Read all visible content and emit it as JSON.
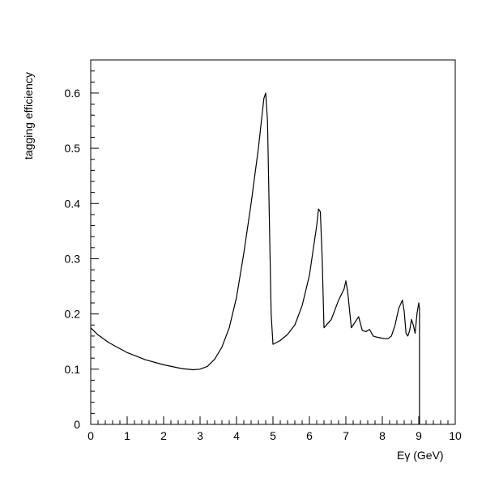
{
  "chart_data": {
    "type": "line",
    "title": "",
    "xlabel": "Eγ (GeV)",
    "ylabel": "tagging efficiency",
    "xlim": [
      0,
      10
    ],
    "ylim": [
      0,
      0.66
    ],
    "x_ticks": [
      0,
      1,
      2,
      3,
      4,
      5,
      6,
      7,
      8,
      9,
      10
    ],
    "x_tick_labels": [
      "0",
      "1",
      "2",
      "3",
      "4",
      "5",
      "6",
      "7",
      "8",
      "9",
      "10"
    ],
    "y_ticks": [
      0,
      0.1,
      0.2,
      0.3,
      0.4,
      0.5,
      0.6
    ],
    "y_tick_labels": [
      "0",
      "0.1",
      "0.2",
      "0.3",
      "0.4",
      "0.5",
      "0.6"
    ],
    "grid": false,
    "legend": "none",
    "line_color": "#000000",
    "series": [
      {
        "x": [
          0,
          0.2,
          0.5,
          1.0,
          1.5,
          2.0,
          2.5,
          2.8,
          3.0,
          3.2,
          3.4,
          3.6,
          3.8,
          4.0,
          4.2,
          4.4,
          4.6,
          4.75,
          4.8,
          4.85,
          4.95,
          5.0,
          5.2,
          5.4,
          5.6,
          5.8,
          6.0,
          6.2,
          6.25,
          6.3,
          6.35,
          6.4,
          6.6,
          6.8,
          6.95,
          7.0,
          7.05,
          7.15,
          7.25,
          7.35,
          7.45,
          7.55,
          7.65,
          7.75,
          7.85,
          8.0,
          8.15,
          8.25,
          8.35,
          8.45,
          8.55,
          8.6,
          8.65,
          8.7,
          8.75,
          8.8,
          8.85,
          8.9,
          8.95,
          9.0,
          9.02,
          9.02
        ],
        "y": [
          0.175,
          0.162,
          0.148,
          0.13,
          0.117,
          0.108,
          0.101,
          0.099,
          0.1,
          0.105,
          0.118,
          0.14,
          0.175,
          0.23,
          0.31,
          0.4,
          0.5,
          0.59,
          0.6,
          0.55,
          0.2,
          0.145,
          0.152,
          0.163,
          0.18,
          0.215,
          0.27,
          0.36,
          0.39,
          0.385,
          0.3,
          0.175,
          0.19,
          0.225,
          0.245,
          0.26,
          0.24,
          0.175,
          0.185,
          0.195,
          0.17,
          0.168,
          0.172,
          0.16,
          0.158,
          0.156,
          0.155,
          0.16,
          0.18,
          0.21,
          0.225,
          0.205,
          0.165,
          0.16,
          0.17,
          0.19,
          0.18,
          0.165,
          0.2,
          0.22,
          0.21,
          0.0
        ]
      }
    ]
  }
}
